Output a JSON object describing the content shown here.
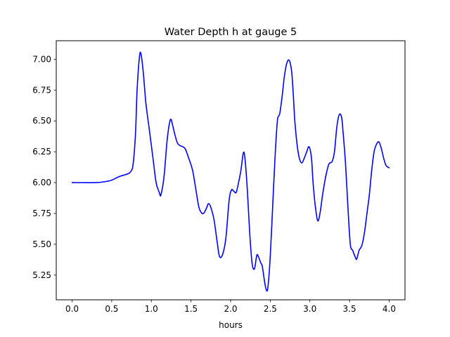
{
  "chart_data": {
    "type": "line",
    "title": "Water Depth h at gauge 5",
    "xlabel": "hours",
    "ylabel": "",
    "xlim": [
      -0.2,
      4.2
    ],
    "ylim": [
      5.05,
      7.15
    ],
    "xticks": [
      0.0,
      0.5,
      1.0,
      1.5,
      2.0,
      2.5,
      3.0,
      3.5,
      4.0
    ],
    "xtick_labels": [
      "0.0",
      "0.5",
      "1.0",
      "1.5",
      "2.0",
      "2.5",
      "3.0",
      "3.5",
      "4.0"
    ],
    "yticks": [
      5.25,
      5.5,
      5.75,
      6.0,
      6.25,
      6.5,
      6.75,
      7.0
    ],
    "ytick_labels": [
      "5.25",
      "5.50",
      "5.75",
      "6.00",
      "6.25",
      "6.50",
      "6.75",
      "7.00"
    ],
    "grid": false,
    "series": [
      {
        "color": "#0000ff",
        "x": [
          0.0,
          0.3,
          0.44,
          0.5,
          0.6,
          0.7,
          0.74,
          0.77,
          0.8,
          0.82,
          0.85,
          0.87,
          0.9,
          0.93,
          0.97,
          1.02,
          1.06,
          1.1,
          1.12,
          1.16,
          1.2,
          1.24,
          1.27,
          1.3,
          1.33,
          1.36,
          1.4,
          1.43,
          1.47,
          1.52,
          1.56,
          1.6,
          1.64,
          1.67,
          1.7,
          1.72,
          1.75,
          1.79,
          1.83,
          1.86,
          1.9,
          1.94,
          1.98,
          2.01,
          2.04,
          2.07,
          2.1,
          2.13,
          2.16,
          2.18,
          2.21,
          2.24,
          2.27,
          2.3,
          2.33,
          2.35,
          2.38,
          2.4,
          2.43,
          2.45,
          2.47,
          2.5,
          2.53,
          2.56,
          2.59,
          2.62,
          2.65,
          2.68,
          2.71,
          2.74,
          2.77,
          2.79,
          2.81,
          2.84,
          2.87,
          2.9,
          2.93,
          2.96,
          2.99,
          3.02,
          3.04,
          3.07,
          3.1,
          3.13,
          3.16,
          3.2,
          3.24,
          3.28,
          3.31,
          3.34,
          3.37,
          3.4,
          3.42,
          3.45,
          3.48,
          3.51,
          3.54,
          3.57,
          3.59,
          3.62,
          3.64,
          3.66,
          3.69,
          3.72,
          3.75,
          3.78,
          3.81,
          3.84,
          3.87,
          3.9,
          3.93,
          3.96,
          4.0
        ],
        "y": [
          6.0,
          6.0,
          6.01,
          6.02,
          6.05,
          6.07,
          6.09,
          6.15,
          6.4,
          6.75,
          7.02,
          7.04,
          6.88,
          6.65,
          6.45,
          6.2,
          6.0,
          5.92,
          5.9,
          6.05,
          6.35,
          6.51,
          6.46,
          6.38,
          6.32,
          6.3,
          6.29,
          6.27,
          6.2,
          6.1,
          5.95,
          5.8,
          5.75,
          5.76,
          5.8,
          5.83,
          5.8,
          5.7,
          5.52,
          5.4,
          5.42,
          5.55,
          5.85,
          5.94,
          5.93,
          5.92,
          6.0,
          6.1,
          6.24,
          6.2,
          5.95,
          5.6,
          5.35,
          5.3,
          5.41,
          5.4,
          5.35,
          5.32,
          5.19,
          5.13,
          5.15,
          5.4,
          5.8,
          6.2,
          6.5,
          6.56,
          6.7,
          6.87,
          6.97,
          6.99,
          6.9,
          6.72,
          6.5,
          6.3,
          6.19,
          6.16,
          6.2,
          6.25,
          6.29,
          6.2,
          6.0,
          5.8,
          5.69,
          5.76,
          5.9,
          6.05,
          6.15,
          6.17,
          6.25,
          6.45,
          6.55,
          6.53,
          6.4,
          6.15,
          5.8,
          5.5,
          5.45,
          5.4,
          5.38,
          5.45,
          5.47,
          5.5,
          5.6,
          5.75,
          5.9,
          6.1,
          6.25,
          6.31,
          6.33,
          6.28,
          6.2,
          6.14,
          6.12
        ]
      }
    ]
  }
}
